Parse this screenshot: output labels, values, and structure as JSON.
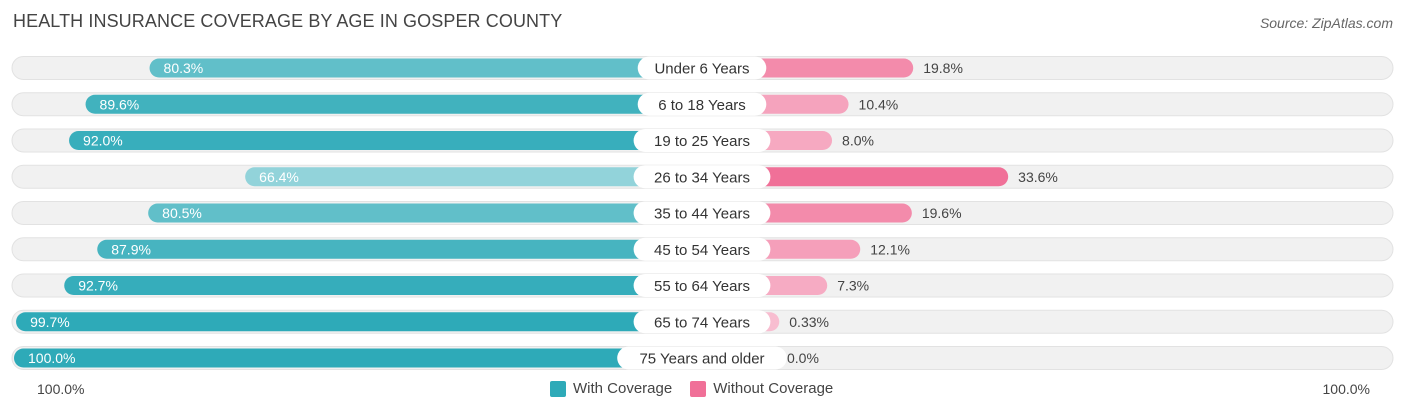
{
  "title": "HEALTH INSURANCE COVERAGE BY AGE IN GOSPER COUNTY",
  "source": "Source: ZipAtlas.com",
  "colors": {
    "with_coverage": "#2eaab8",
    "without_coverage": "#f07098",
    "track": "#f1f1f1"
  },
  "legend": {
    "with_label": "With Coverage",
    "without_label": "Without Coverage"
  },
  "axis": {
    "left_label": "100.0%",
    "right_label": "100.0%"
  },
  "chart_data": {
    "type": "bar",
    "orientation": "diverging-horizontal",
    "title": "HEALTH INSURANCE COVERAGE BY AGE IN GOSPER COUNTY",
    "categories": [
      "Under 6 Years",
      "6 to 18 Years",
      "19 to 25 Years",
      "26 to 34 Years",
      "35 to 44 Years",
      "45 to 54 Years",
      "55 to 64 Years",
      "65 to 74 Years",
      "75 Years and older"
    ],
    "series": [
      {
        "name": "With Coverage",
        "values": [
          80.3,
          89.6,
          92.0,
          66.4,
          80.5,
          87.9,
          92.7,
          99.7,
          100.0
        ],
        "labels": [
          "80.3%",
          "89.6%",
          "92.0%",
          "66.4%",
          "80.5%",
          "87.9%",
          "92.7%",
          "99.7%",
          "100.0%"
        ]
      },
      {
        "name": "Without Coverage",
        "values": [
          19.8,
          10.4,
          8.0,
          33.6,
          19.6,
          12.1,
          7.3,
          0.33,
          0.0
        ],
        "labels": [
          "19.8%",
          "10.4%",
          "8.0%",
          "33.6%",
          "19.6%",
          "12.1%",
          "7.3%",
          "0.33%",
          "0.0%"
        ]
      }
    ],
    "xlim": [
      -100,
      100
    ],
    "legend_position": "bottom-center"
  }
}
